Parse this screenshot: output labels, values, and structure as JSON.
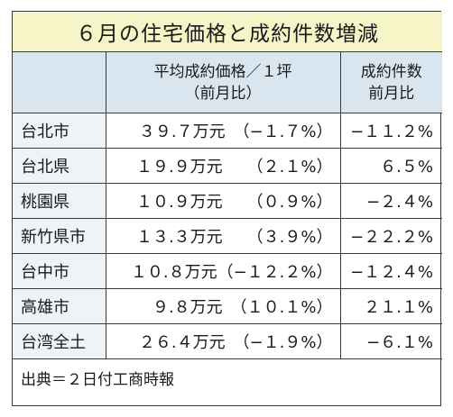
{
  "title": "６月の住宅価格と成約件数増減",
  "headers": {
    "col1": "",
    "col2_line1": "平均成約価格／１坪",
    "col2_line2": "（前月比）",
    "col3_line1": "成約件数",
    "col3_line2": "前月比"
  },
  "rows": [
    {
      "region": "台北市",
      "price": "３９.７万元　（−１.７%）",
      "count": "−１１.２%"
    },
    {
      "region": "台北県",
      "price": "１９.９万元　　（２.１%）",
      "count": "６.５%"
    },
    {
      "region": "桃園県",
      "price": "１０.９万元　　（０.９%）",
      "count": "−２.４%"
    },
    {
      "region": "新竹県市",
      "price": "１３.３万元　　（３.９%）",
      "count": "−２２.２%"
    },
    {
      "region": "台中市",
      "price": "１０.８万元（−１２.２%）",
      "count": "−１２.４%"
    },
    {
      "region": "高雄市",
      "price": "９.８万元　（１０.１%）",
      "count": "２１.１%"
    },
    {
      "region": "台湾全土",
      "price": "２６.４万元　（−１.９%）",
      "count": "−６.１%"
    }
  ],
  "source": "出典＝２日付工商時報"
}
